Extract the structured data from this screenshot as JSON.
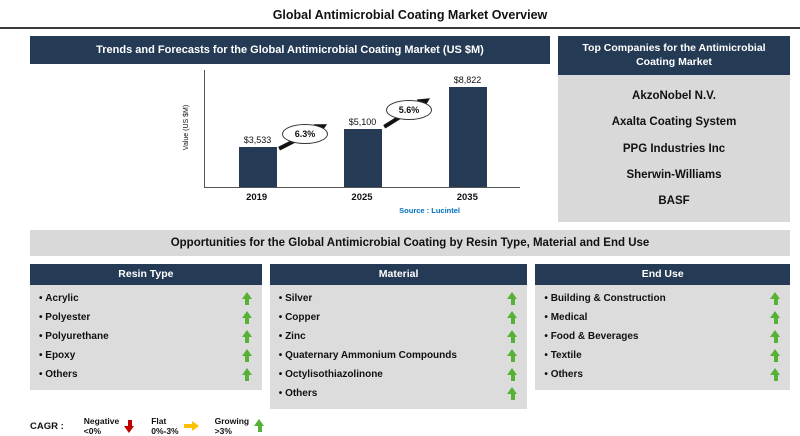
{
  "page": {
    "title": "Global Antimicrobial Coating Market Overview"
  },
  "colors": {
    "navy": "#243A55",
    "panel_gray": "#D9D9D9",
    "column_gray": "#DCDCDC",
    "green": "#56B234",
    "source_blue": "#0070C0"
  },
  "trends_panel": {
    "header": "Trends and Forecasts for the Global Antimicrobial Coating Market (US $M)"
  },
  "chart_data": {
    "type": "bar",
    "title": "Trends and Forecasts for the Global Antimicrobial Coating Market (US $M)",
    "categories": [
      "2019",
      "2025",
      "2035"
    ],
    "values": [
      3533,
      5100,
      8822
    ],
    "value_labels": [
      "$3,533",
      "$5,100",
      "$8,822"
    ],
    "growth_labels": [
      "6.3%",
      "5.6%"
    ],
    "ylabel": "Value (US $M)",
    "xlabel": "",
    "source": "Source : Lucintel",
    "bar_color": "#243A55",
    "grid": false,
    "legend_position": "none"
  },
  "top_companies": {
    "header": "Top Companies for the Antimicrobial Coating Market",
    "companies": [
      "AkzoNobel N.V.",
      "Axalta Coating System",
      "PPG Industries Inc",
      "Sherwin-Williams",
      "BASF"
    ]
  },
  "opportunities": {
    "header": "Opportunities for the Global Antimicrobial Coating by Resin Type, Material and End Use",
    "columns": [
      {
        "header": "Resin Type",
        "items": [
          {
            "label": "Acrylic",
            "trend": "up"
          },
          {
            "label": "Polyester",
            "trend": "up"
          },
          {
            "label": "Polyurethane",
            "trend": "up"
          },
          {
            "label": "Epoxy",
            "trend": "up"
          },
          {
            "label": "Others",
            "trend": "up"
          }
        ]
      },
      {
        "header": "Material",
        "items": [
          {
            "label": "Silver",
            "trend": "up"
          },
          {
            "label": "Copper",
            "trend": "up"
          },
          {
            "label": "Zinc",
            "trend": "up"
          },
          {
            "label": "Quaternary Ammonium Compounds",
            "trend": "up"
          },
          {
            "label": "Octylisothiazolinone",
            "trend": "up"
          },
          {
            "label": "Others",
            "trend": "up"
          }
        ]
      },
      {
        "header": "End Use",
        "items": [
          {
            "label": "Building & Construction",
            "trend": "up"
          },
          {
            "label": "Medical",
            "trend": "up"
          },
          {
            "label": "Food & Beverages",
            "trend": "up"
          },
          {
            "label": "Textile",
            "trend": "up"
          },
          {
            "label": "Others",
            "trend": "up"
          }
        ]
      }
    ]
  },
  "legend": {
    "label": "CAGR :",
    "entries": [
      {
        "name": "Negative",
        "range": "<0%",
        "direction": "down",
        "color": "#C00000"
      },
      {
        "name": "Flat",
        "range": "0%-3%",
        "direction": "right",
        "color": "#FFC000"
      },
      {
        "name": "Growing",
        "range": ">3%",
        "direction": "up",
        "color": "#56B234"
      }
    ]
  }
}
